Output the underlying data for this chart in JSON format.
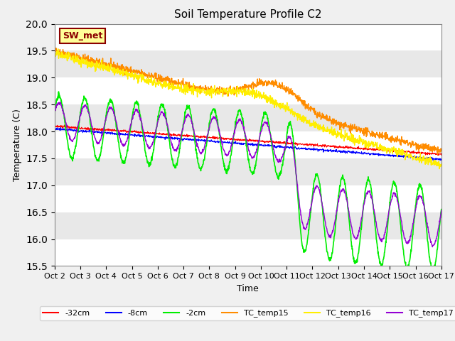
{
  "title": "Soil Temperature Profile C2",
  "xlabel": "Time",
  "ylabel": "Temperature (C)",
  "ylim": [
    15.5,
    20.0
  ],
  "yticks": [
    15.5,
    16.0,
    16.5,
    17.0,
    17.5,
    18.0,
    18.5,
    19.0,
    19.5,
    20.0
  ],
  "xtick_labels": [
    "Oct 2",
    "Oct 3",
    "Oct 4",
    "Oct 5",
    "Oct 6",
    "Oct 7",
    "Oct 8",
    "Oct 9",
    "Oct 10",
    "Oct 11",
    "Oct 12",
    "Oct 13",
    "Oct 14",
    "Oct 15",
    "Oct 16",
    "Oct 17"
  ],
  "n_days": 15,
  "points_per_day": 96,
  "annotation_text": "SW_met",
  "annotation_color": "#8b0000",
  "annotation_bg": "#ffff99",
  "band_colors": [
    "#ffffff",
    "#e8e8e8"
  ],
  "series": {
    "neg32cm": {
      "color": "#ff0000",
      "label": "-32cm",
      "lw": 0.8
    },
    "neg8cm": {
      "color": "#0000ff",
      "label": "-8cm",
      "lw": 0.8
    },
    "neg2cm": {
      "color": "#00ee00",
      "label": "-2cm",
      "lw": 1.2
    },
    "tc15": {
      "color": "#ff8c00",
      "label": "TC_temp15",
      "lw": 1.0
    },
    "tc16": {
      "color": "#ffee00",
      "label": "TC_temp16",
      "lw": 1.0
    },
    "tc17": {
      "color": "#9400d3",
      "label": "TC_temp17",
      "lw": 1.0
    }
  }
}
